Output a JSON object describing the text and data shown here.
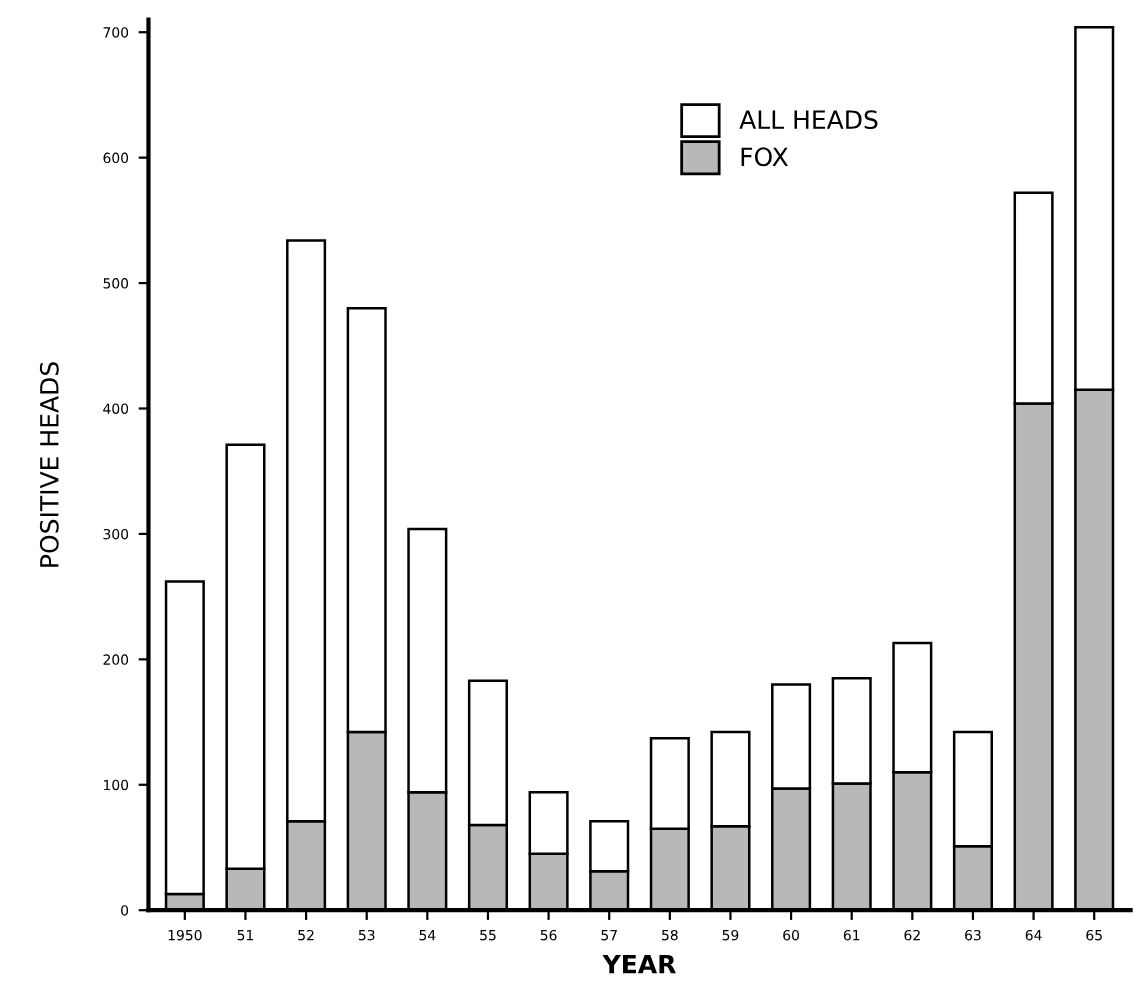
{
  "chart_data": {
    "type": "bar",
    "stacked": true,
    "xlabel": "YEAR",
    "ylabel": "POSITIVE HEADS",
    "categories": [
      "1950",
      "51",
      "52",
      "53",
      "54",
      "55",
      "56",
      "57",
      "58",
      "59",
      "60",
      "61",
      "62",
      "63",
      "64",
      "65"
    ],
    "series": [
      {
        "name": "FOX",
        "color": "#b8b8b8",
        "values": [
          13,
          33,
          71,
          142,
          94,
          68,
          45,
          31,
          65,
          67,
          97,
          101,
          110,
          51,
          404,
          415
        ]
      },
      {
        "name": "ALL HEADS",
        "color": "#ffffff",
        "values": [
          249,
          338,
          463,
          338,
          210,
          115,
          49,
          40,
          72,
          75,
          83,
          84,
          103,
          91,
          168,
          289
        ]
      }
    ],
    "ylim": [
      0,
      710
    ],
    "yticks": [
      0,
      100,
      200,
      300,
      400,
      500,
      600,
      700
    ],
    "grid": false,
    "legend": "top"
  }
}
